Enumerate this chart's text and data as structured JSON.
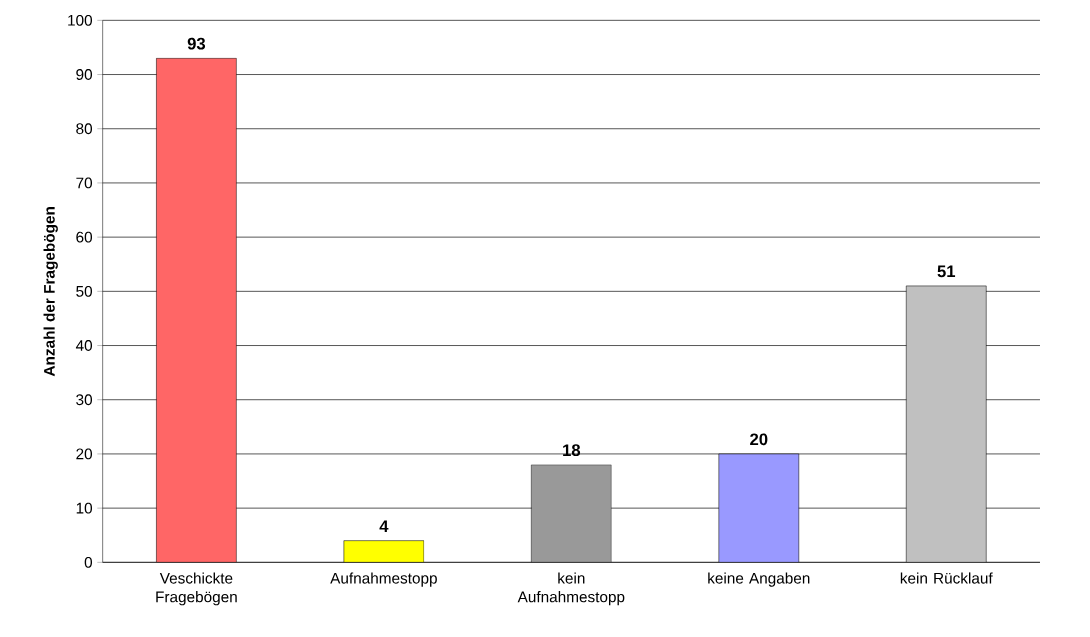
{
  "chart_data": {
    "type": "bar",
    "ylabel": "Anzahl der Fragebögen",
    "categories": [
      "Veschickte Fragebögen",
      "Aufnahmestopp",
      "kein Aufnahmestopp",
      "keine Angaben",
      "kein Rücklauf"
    ],
    "values": [
      93,
      4,
      18,
      20,
      51
    ],
    "colors": [
      "#ff6666",
      "#ffff00",
      "#999999",
      "#9999ff",
      "#c0c0c0"
    ],
    "ylim": [
      0,
      100
    ],
    "yticks": [
      0,
      10,
      20,
      30,
      40,
      50,
      60,
      70,
      80,
      90,
      100
    ],
    "grid": "y",
    "data_labels": true
  }
}
